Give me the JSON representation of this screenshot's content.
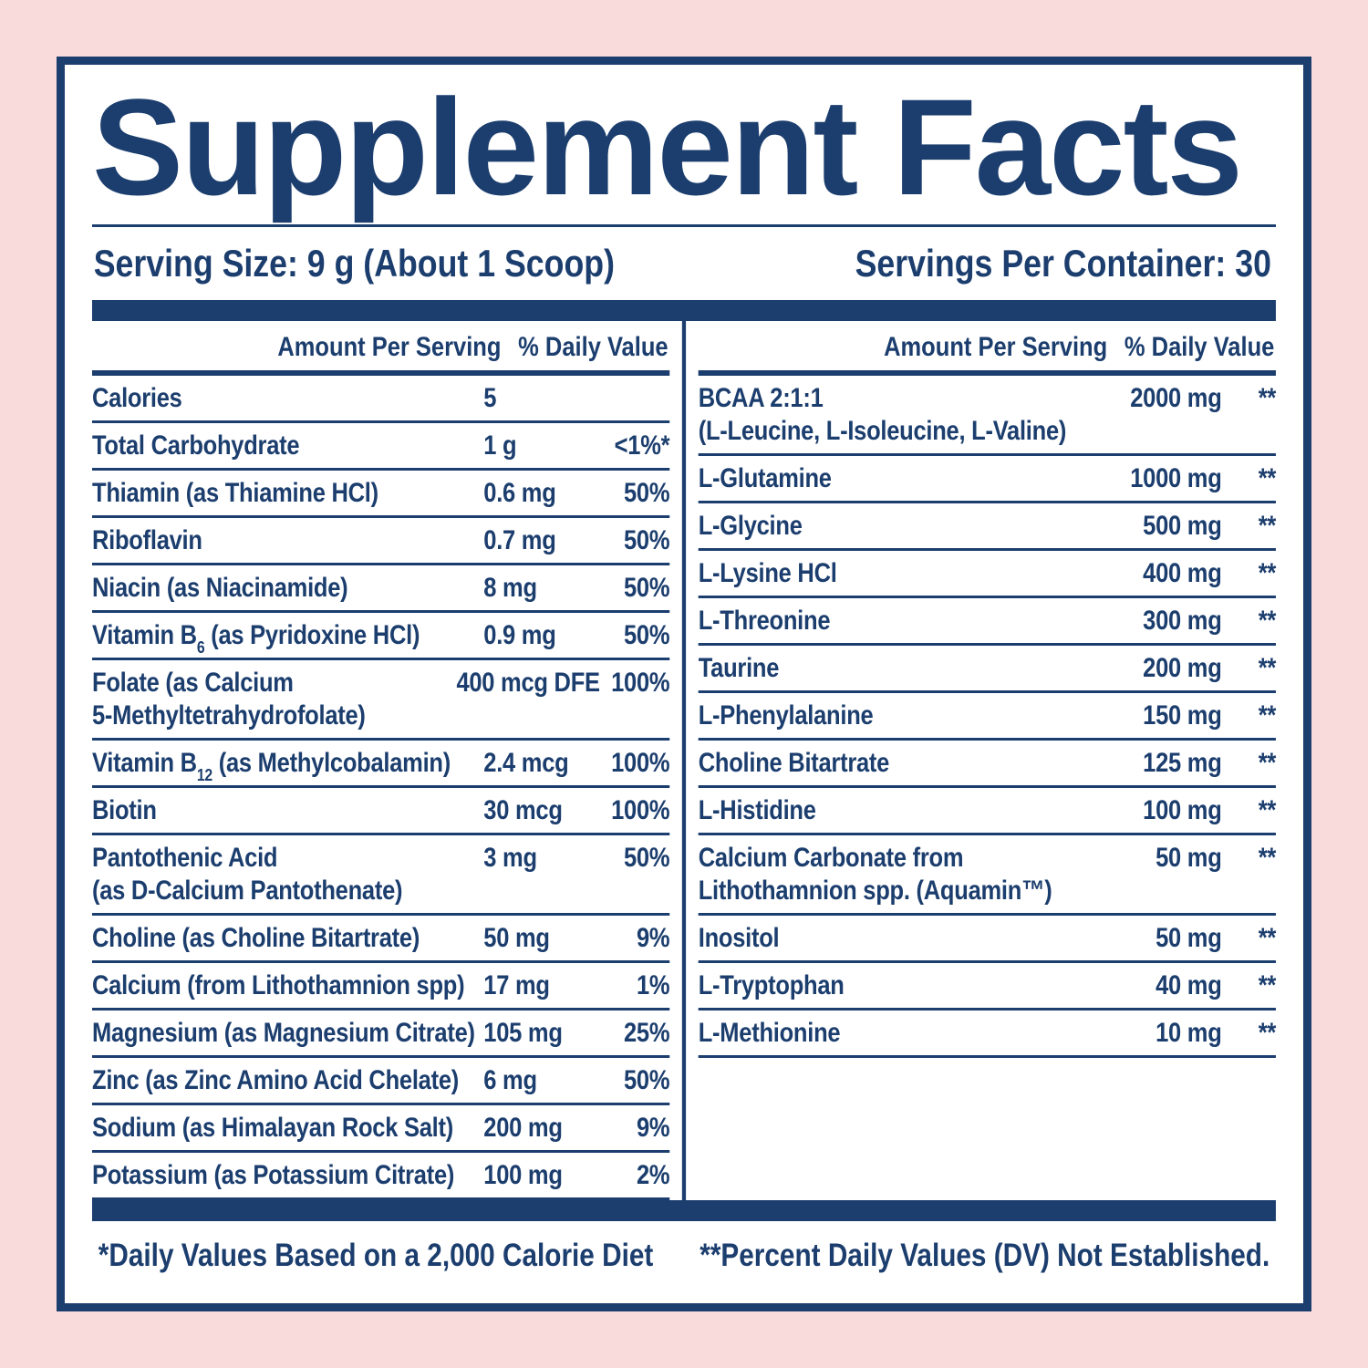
{
  "colors": {
    "navy": "#1c3e6e",
    "pink": "#fadbdb",
    "white": "#ffffff"
  },
  "title": "Supplement Facts",
  "serving": {
    "size": "Serving Size: 9 g (About 1 Scoop)",
    "per_container": "Servings Per Container: 30"
  },
  "table": {
    "header": {
      "amount": "Amount Per Serving",
      "dv": "% Daily Value"
    },
    "left_rows": [
      {
        "name": [
          "Calories"
        ],
        "amount": "5",
        "dv": ""
      },
      {
        "name": [
          "Total Carbohydrate"
        ],
        "amount": "1 g",
        "dv": "<1%*"
      },
      {
        "name": [
          "Thiamin (as Thiamine HCl)"
        ],
        "amount": "0.6 mg",
        "dv": "50%"
      },
      {
        "name": [
          "Riboflavin"
        ],
        "amount": "0.7 mg",
        "dv": "50%"
      },
      {
        "name": [
          "Niacin (as Niacinamide)"
        ],
        "amount": "8 mg",
        "dv": "50%"
      },
      {
        "name": [
          "Vitamin B",
          {
            "sub": "6"
          },
          " (as Pyridoxine HCl)"
        ],
        "amount": "0.9 mg",
        "dv": "50%"
      },
      {
        "name": [
          "Folate (as Calcium"
        ],
        "name2": "5-Methyltetrahydrofolate)",
        "amount": "400 mcg DFE",
        "dv": "100%"
      },
      {
        "name": [
          "Vitamin B",
          {
            "sub": "12"
          },
          " (as Methylcobalamin)"
        ],
        "amount": "2.4 mcg",
        "dv": "100%"
      },
      {
        "name": [
          "Biotin"
        ],
        "amount": "30 mcg",
        "dv": "100%"
      },
      {
        "name": [
          "Pantothenic Acid"
        ],
        "name2": "(as D-Calcium Pantothenate)",
        "amount": "3 mg",
        "dv": "50%"
      },
      {
        "name": [
          "Choline (as Choline Bitartrate)"
        ],
        "amount": "50 mg",
        "dv": "9%"
      },
      {
        "name": [
          "Calcium (from Lithothamnion spp)"
        ],
        "amount": "17 mg",
        "dv": "1%"
      },
      {
        "name": [
          "Magnesium (as Magnesium Citrate)"
        ],
        "amount": "105 mg",
        "dv": "25%"
      },
      {
        "name": [
          "Zinc (as Zinc Amino Acid Chelate)"
        ],
        "amount": "6 mg",
        "dv": "50%"
      },
      {
        "name": [
          "Sodium (as Himalayan Rock Salt)"
        ],
        "amount": "200 mg",
        "dv": "9%"
      },
      {
        "name": [
          "Potassium (as Potassium Citrate)"
        ],
        "amount": "100 mg",
        "dv": "2%"
      }
    ],
    "right_rows": [
      {
        "name": [
          "BCAA 2:1:1"
        ],
        "name2": "(L-Leucine, L-Isoleucine, L-Valine)",
        "amount": "2000 mg",
        "dv": "**"
      },
      {
        "name": [
          "L-Glutamine"
        ],
        "amount": "1000 mg",
        "dv": "**"
      },
      {
        "name": [
          "L-Glycine"
        ],
        "amount": "500 mg",
        "dv": "**"
      },
      {
        "name": [
          "L-Lysine HCl"
        ],
        "amount": "400 mg",
        "dv": "**"
      },
      {
        "name": [
          "L-Threonine"
        ],
        "amount": "300 mg",
        "dv": "**"
      },
      {
        "name": [
          "Taurine"
        ],
        "amount": "200 mg",
        "dv": "**"
      },
      {
        "name": [
          "L-Phenylalanine"
        ],
        "amount": "150 mg",
        "dv": "**"
      },
      {
        "name": [
          "Choline Bitartrate"
        ],
        "amount": "125 mg",
        "dv": "**"
      },
      {
        "name": [
          "L-Histidine"
        ],
        "amount": "100 mg",
        "dv": "**"
      },
      {
        "name": [
          "Calcium Carbonate from"
        ],
        "name2": "Lithothamnion spp. (Aquamin™)",
        "amount": "50 mg",
        "dv": "**"
      },
      {
        "name": [
          "Inositol"
        ],
        "amount": "50 mg",
        "dv": "**"
      },
      {
        "name": [
          "L-Tryptophan"
        ],
        "amount": "40 mg",
        "dv": "**"
      },
      {
        "name": [
          "L-Methionine"
        ],
        "amount": "10 mg",
        "dv": "**"
      }
    ]
  },
  "footnotes": {
    "daily_values": "*Daily Values Based on a 2,000 Calorie Diet",
    "not_established": "**Percent Daily Values (DV) Not Established."
  }
}
